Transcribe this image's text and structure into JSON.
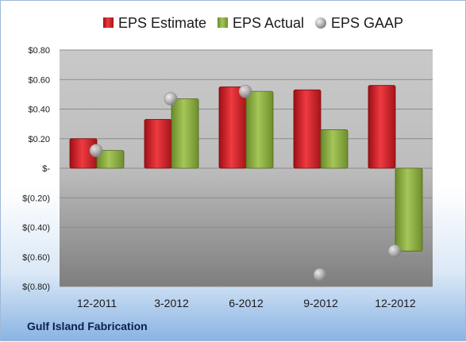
{
  "chart_data": {
    "type": "bar",
    "title": "",
    "caption": "Gulf Island Fabrication",
    "xlabel": "",
    "ylabel": "",
    "categories": [
      "12-2011",
      "3-2012",
      "6-2012",
      "9-2012",
      "12-2012"
    ],
    "series": [
      {
        "name": "EPS Estimate",
        "kind": "bar",
        "color": "#cc1f26",
        "values": [
          0.2,
          0.33,
          0.55,
          0.53,
          0.56
        ]
      },
      {
        "name": "EPS Actual",
        "kind": "bar",
        "color": "#8aac3e",
        "values": [
          0.12,
          0.47,
          0.52,
          0.26,
          -0.56
        ]
      },
      {
        "name": "EPS GAAP",
        "kind": "marker",
        "color": "#b8b8b8",
        "values": [
          0.12,
          0.47,
          0.52,
          -0.72,
          -0.56
        ]
      }
    ],
    "ylim": [
      -0.8,
      0.8
    ],
    "yticks": [
      0.8,
      0.6,
      0.4,
      0.2,
      0.0,
      -0.2,
      -0.4,
      -0.6,
      -0.8
    ],
    "ytick_labels": [
      "$0.80",
      "$0.60",
      "$0.40",
      "$0.20",
      "$-",
      "$(0.20)",
      "$(0.40)",
      "$(0.60)",
      "$(0.80)"
    ],
    "grid": true,
    "legend": "top-center"
  }
}
